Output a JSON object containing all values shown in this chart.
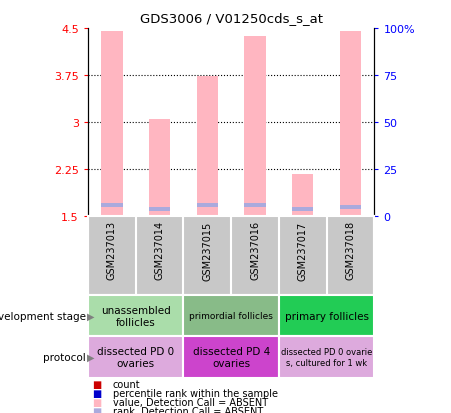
{
  "title": "GDS3006 / V01250cds_s_at",
  "samples": [
    "GSM237013",
    "GSM237014",
    "GSM237015",
    "GSM237016",
    "GSM237017",
    "GSM237018"
  ],
  "bar_values": [
    4.45,
    3.05,
    3.73,
    4.38,
    2.17,
    4.45
  ],
  "rank_values": [
    1.68,
    1.62,
    1.68,
    1.68,
    1.62,
    1.65
  ],
  "ylim_left": [
    1.5,
    4.5
  ],
  "ylim_right": [
    0,
    100
  ],
  "yticks_left": [
    1.5,
    2.25,
    3.0,
    3.75,
    4.5
  ],
  "ytick_labels_left": [
    "1.5",
    "2.25",
    "3",
    "3.75",
    "4.5"
  ],
  "yticks_right": [
    0,
    25,
    50,
    75,
    100
  ],
  "ytick_labels_right": [
    "0",
    "25",
    "50",
    "75",
    "100%"
  ],
  "bar_color_pink": "#FFB6C1",
  "rank_color_blue": "#AAAADD",
  "xlabels_bg": "#C8C8C8",
  "development_stage_groups": [
    {
      "label": "unassembled\nfollicles",
      "start": 0,
      "end": 2,
      "color": "#AADDAA",
      "fontsize": 7.5
    },
    {
      "label": "primordial follicles",
      "start": 2,
      "end": 4,
      "color": "#88BB88",
      "fontsize": 6.5
    },
    {
      "label": "primary follicles",
      "start": 4,
      "end": 6,
      "color": "#22CC55",
      "fontsize": 7.5
    }
  ],
  "protocol_groups": [
    {
      "label": "dissected PD 0\novaries",
      "start": 0,
      "end": 2,
      "color": "#DDAADD",
      "fontsize": 7.5
    },
    {
      "label": "dissected PD 4\novaries",
      "start": 2,
      "end": 4,
      "color": "#CC44CC",
      "fontsize": 7.5
    },
    {
      "label": "dissected PD 0 ovarie\ns, cultured for 1 wk",
      "start": 4,
      "end": 6,
      "color": "#DDAADD",
      "fontsize": 6.0
    }
  ],
  "legend_items": [
    {
      "label": "count",
      "color": "#CC0000"
    },
    {
      "label": "percentile rank within the sample",
      "color": "#0000CC"
    },
    {
      "label": "value, Detection Call = ABSENT",
      "color": "#FFB6C1"
    },
    {
      "label": "rank, Detection Call = ABSENT",
      "color": "#AAAADD"
    }
  ],
  "dev_stage_label": "development stage",
  "protocol_label": "protocol"
}
